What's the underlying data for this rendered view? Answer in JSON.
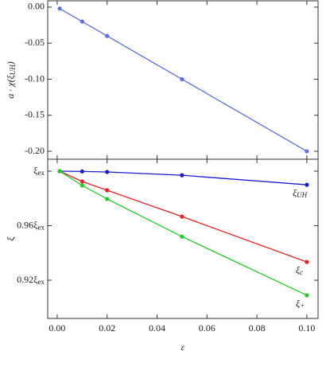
{
  "chart_data": [
    {
      "type": "line",
      "ylabel": "a · χ(ξUH)",
      "xlim": [
        -0.0038,
        0.1045
      ],
      "xticks": [
        0,
        0.02,
        0.04,
        0.06,
        0.08,
        0.1
      ],
      "ylim": [
        -0.211,
        0.0088
      ],
      "yticks": [
        {
          "value": 0,
          "label": "0.00"
        },
        {
          "value": -0.05,
          "label": "-0.05"
        },
        {
          "value": -0.1,
          "label": "-0.10"
        },
        {
          "value": -0.15,
          "label": "-0.15"
        },
        {
          "value": -0.2,
          "label": "-0.20"
        }
      ],
      "x": [
        0.001,
        0.01,
        0.02,
        0.05,
        0.1
      ],
      "series": [
        {
          "color": "#5c6ee8",
          "values": [
            -0.002,
            -0.02,
            -0.04,
            -0.1,
            -0.2
          ]
        }
      ]
    },
    {
      "type": "line",
      "xlabel": "ε",
      "ylabel": "ξ",
      "xlim": [
        -0.0038,
        0.1045
      ],
      "xticks": [
        {
          "value": 0,
          "label": "0.00"
        },
        {
          "value": 0.02,
          "label": "0.02"
        },
        {
          "value": 0.04,
          "label": "0.04"
        },
        {
          "value": 0.06,
          "label": "0.06"
        },
        {
          "value": 0.08,
          "label": "0.08"
        },
        {
          "value": 0.1,
          "label": "0.10"
        }
      ],
      "ylim": [
        0.892,
        1.00876
      ],
      "yticks": [
        {
          "value": 1,
          "label": "ξex"
        },
        {
          "value": 0.96,
          "label": "0.96ξex"
        },
        {
          "value": 0.92,
          "label": "0.92ξex"
        }
      ],
      "x": [
        0.001,
        0.01,
        0.02,
        0.05,
        0.1
      ],
      "series": [
        {
          "name": "ξUH",
          "color": "#1a1ad0",
          "values": [
            1.0,
            0.9998,
            0.9994,
            0.997,
            0.99
          ]
        },
        {
          "name": "ξc",
          "color": "#e82020",
          "values": [
            1.0,
            0.9924,
            0.986,
            0.9667,
            0.9334
          ]
        },
        {
          "name": "ξ+",
          "color": "#22cc22",
          "values": [
            1.0,
            0.9895,
            0.9796,
            0.952,
            0.909
          ]
        }
      ]
    }
  ]
}
